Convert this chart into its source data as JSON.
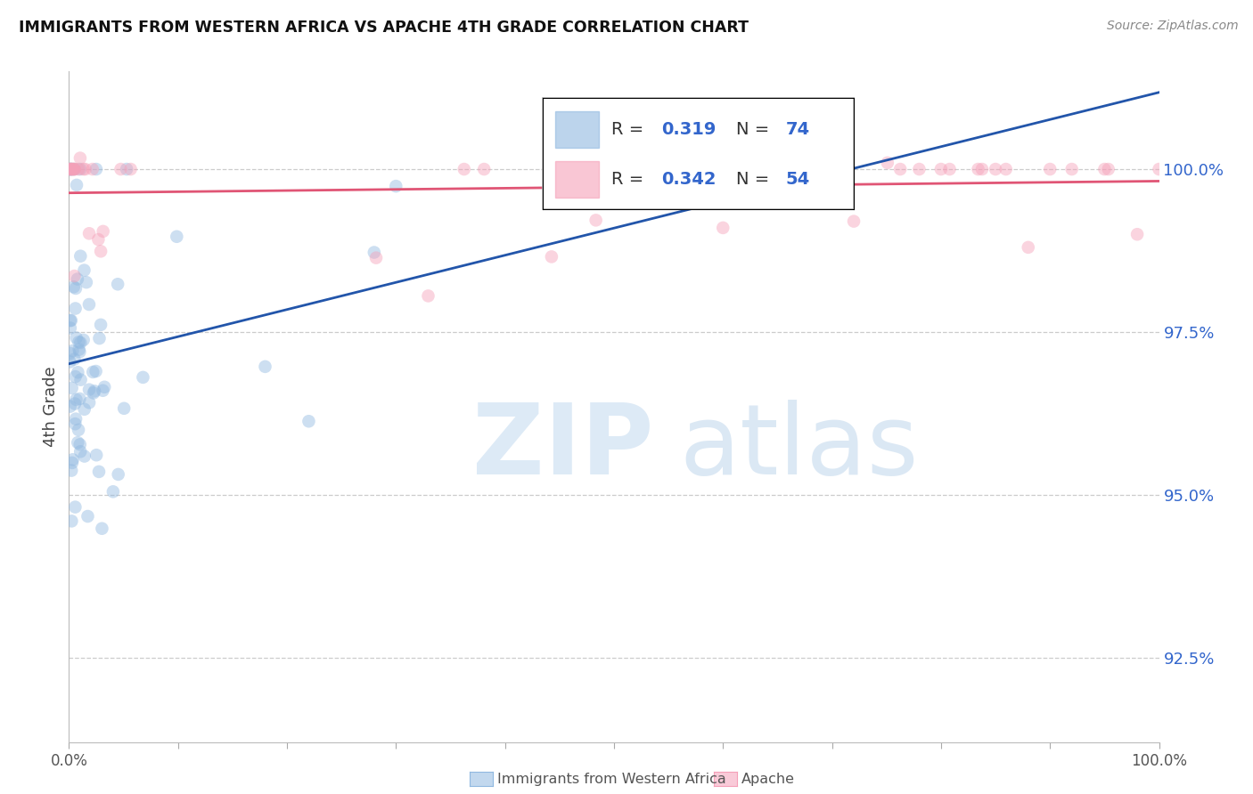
{
  "title": "IMMIGRANTS FROM WESTERN AFRICA VS APACHE 4TH GRADE CORRELATION CHART",
  "source": "Source: ZipAtlas.com",
  "ylabel": "4th Grade",
  "yticks": [
    92.5,
    95.0,
    97.5,
    100.0
  ],
  "ytick_labels": [
    "92.5%",
    "95.0%",
    "97.5%",
    "100.0%"
  ],
  "xmin": 0.0,
  "xmax": 1.0,
  "ymin": 91.2,
  "ymax": 101.5,
  "blue_fill": "#90B8E0",
  "blue_edge": "#90B8E0",
  "pink_fill": "#F5A0B8",
  "pink_edge": "#F5A0B8",
  "blue_line_color": "#2255AA",
  "pink_line_color": "#E05575",
  "legend_r_color": "#3366CC",
  "legend_n_color": "#3366CC",
  "legend_border": "#bbbbbb",
  "grid_color": "#cccccc",
  "ytick_color": "#3366CC",
  "xtick_color": "#555555",
  "title_color": "#111111",
  "source_color": "#888888",
  "ylabel_color": "#444444",
  "bottom_legend_color": "#555555",
  "scatter_size": 110,
  "scatter_alpha": 0.45,
  "line_width": 2.0,
  "blue_n": 74,
  "pink_n": 54,
  "legend_blue_r": "0.319",
  "legend_blue_n": "74",
  "legend_pink_r": "0.342",
  "legend_pink_n": "54"
}
